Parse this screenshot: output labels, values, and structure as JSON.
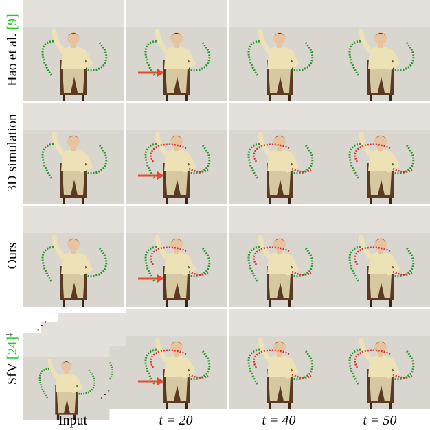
{
  "rows": [
    {
      "label": "Hao et al.",
      "citation": "[9]"
    },
    {
      "label": "3D simulation"
    },
    {
      "label": "Ours"
    },
    {
      "label": "SfV",
      "citation": "[24]",
      "mark": "‡"
    }
  ],
  "columns": [
    "Input",
    "t = 20",
    "t = 40",
    "t = 50"
  ]
}
